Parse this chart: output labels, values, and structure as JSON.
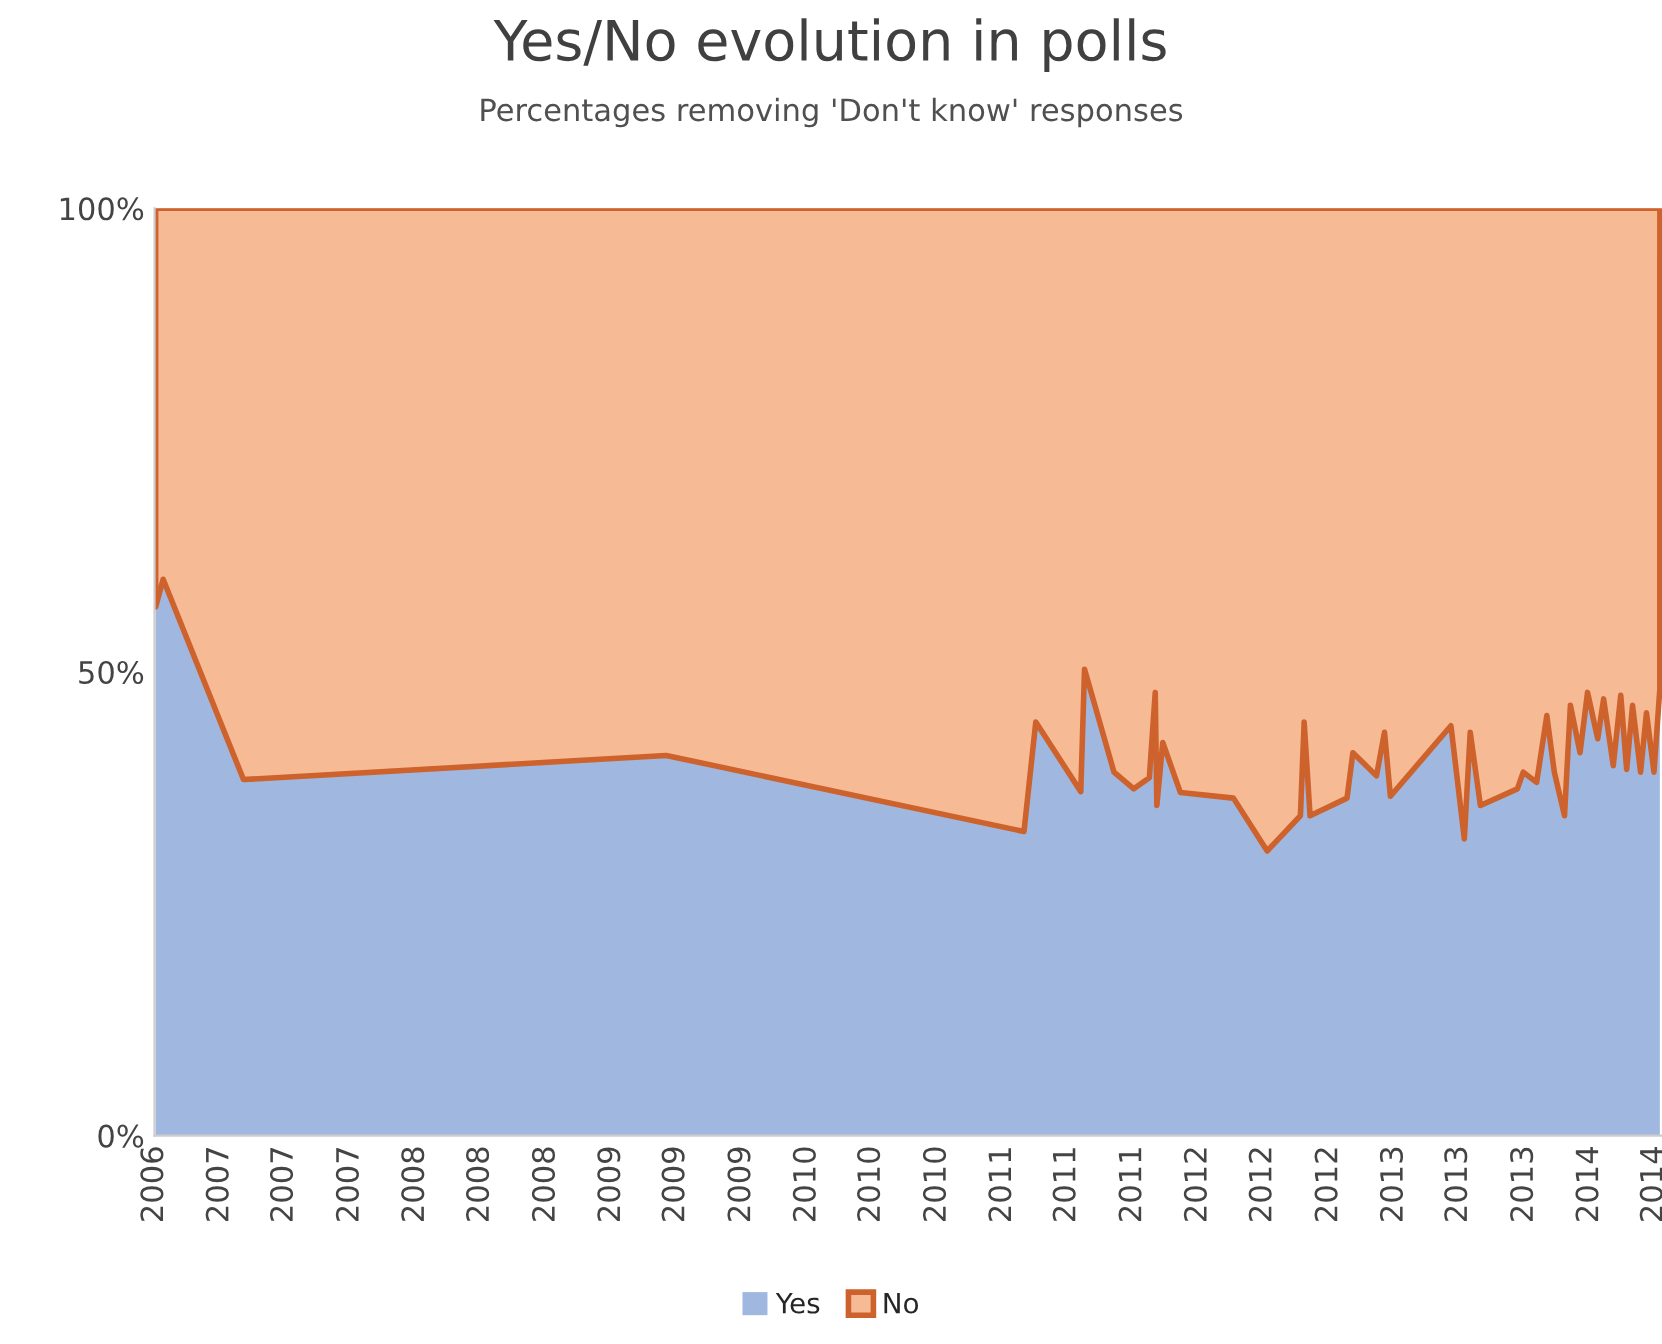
{
  "chart_data": {
    "type": "area",
    "stacked": true,
    "title": "Yes/No evolution in polls",
    "subtitle": "Percentages removing 'Don't know' responses",
    "x": [
      "2006-09-03",
      "2006-09-17",
      "2007-02-14",
      "2009-04-13",
      "2011-02-10",
      "2011-03-04",
      "2011-05-27",
      "2011-06-03",
      "2011-07-28",
      "2011-09-03",
      "2011-10-02",
      "2011-10-13",
      "2011-10-16",
      "2011-10-27",
      "2011-11-29",
      "2012-03-07",
      "2012-05-09",
      "2012-07-10",
      "2012-07-17",
      "2012-07-28",
      "2012-10-05",
      "2012-10-16",
      "2012-11-29",
      "2012-12-14",
      "2012-12-25",
      "2013-04-17",
      "2013-05-12",
      "2013-05-23",
      "2013-06-11",
      "2013-08-19",
      "2013-08-30",
      "2013-09-24",
      "2013-10-13",
      "2013-10-27",
      "2013-11-15",
      "2013-11-26",
      "2013-12-14",
      "2013-12-28",
      "2014-01-16",
      "2014-01-27",
      "2014-02-14",
      "2014-02-28",
      "2014-03-11",
      "2014-03-22",
      "2014-04-06",
      "2014-04-17",
      "2014-05-01",
      "2014-05-12"
    ],
    "series": [
      {
        "name": "Yes",
        "color": "#a0b8e0",
        "values": [
          57,
          60,
          38.4,
          41,
          32.8,
          44.6,
          37.1,
          50.3,
          39.2,
          37.4,
          38.6,
          47.8,
          35.6,
          42.4,
          37,
          36.4,
          30.7,
          34.5,
          44.6,
          34.5,
          36.4,
          41.3,
          38.8,
          43.5,
          36.6,
          44.2,
          32,
          43.5,
          35.6,
          37.4,
          39.2,
          38.1,
          45.3,
          39.2,
          34.5,
          46.4,
          41.3,
          47.8,
          42.8,
          47.1,
          39.9,
          47.5,
          39.5,
          46.4,
          39.2,
          45.6,
          39.2,
          48.2
        ]
      },
      {
        "name": "No",
        "color": "#f6ba94",
        "values": [
          43,
          40,
          61.6,
          59,
          67.2,
          55.4,
          62.9,
          49.7,
          60.8,
          62.6,
          61.4,
          52.2,
          64.4,
          57.6,
          63,
          63.6,
          69.3,
          65.5,
          55.4,
          65.5,
          63.6,
          58.7,
          61.2,
          56.5,
          63.4,
          55.8,
          68,
          56.5,
          64.4,
          62.6,
          60.8,
          61.9,
          54.7,
          60.8,
          65.5,
          53.6,
          58.7,
          52.2,
          57.2,
          52.9,
          60.1,
          52.5,
          60.5,
          53.6,
          60.8,
          54.4,
          60.8,
          51.8
        ]
      }
    ],
    "xlim": [
      "2006-09-01",
      "2014-05-16"
    ],
    "xticks": [
      {
        "value": "2006-09-01",
        "label": "2006"
      },
      {
        "value": "2007-01-01",
        "label": "2007"
      },
      {
        "value": "2007-05-01",
        "label": "2007"
      },
      {
        "value": "2007-09-01",
        "label": "2007"
      },
      {
        "value": "2008-01-01",
        "label": "2008"
      },
      {
        "value": "2008-05-01",
        "label": "2008"
      },
      {
        "value": "2008-09-01",
        "label": "2008"
      },
      {
        "value": "2009-01-01",
        "label": "2009"
      },
      {
        "value": "2009-05-01",
        "label": "2009"
      },
      {
        "value": "2009-09-01",
        "label": "2009"
      },
      {
        "value": "2010-01-01",
        "label": "2010"
      },
      {
        "value": "2010-05-01",
        "label": "2010"
      },
      {
        "value": "2010-09-01",
        "label": "2010"
      },
      {
        "value": "2011-01-01",
        "label": "2011"
      },
      {
        "value": "2011-05-01",
        "label": "2011"
      },
      {
        "value": "2011-09-01",
        "label": "2011"
      },
      {
        "value": "2012-01-01",
        "label": "2012"
      },
      {
        "value": "2012-05-01",
        "label": "2012"
      },
      {
        "value": "2012-09-01",
        "label": "2012"
      },
      {
        "value": "2013-01-01",
        "label": "2013"
      },
      {
        "value": "2013-05-01",
        "label": "2013"
      },
      {
        "value": "2013-09-01",
        "label": "2013"
      },
      {
        "value": "2014-01-01",
        "label": "2014"
      },
      {
        "value": "2014-05-01",
        "label": "2014"
      }
    ],
    "ylim": [
      0,
      100
    ],
    "yticks": [
      {
        "value": 0,
        "label": "0%"
      },
      {
        "value": 50,
        "label": "50%"
      },
      {
        "value": 100,
        "label": "100%"
      }
    ],
    "grid": false,
    "legend": "bottom"
  }
}
